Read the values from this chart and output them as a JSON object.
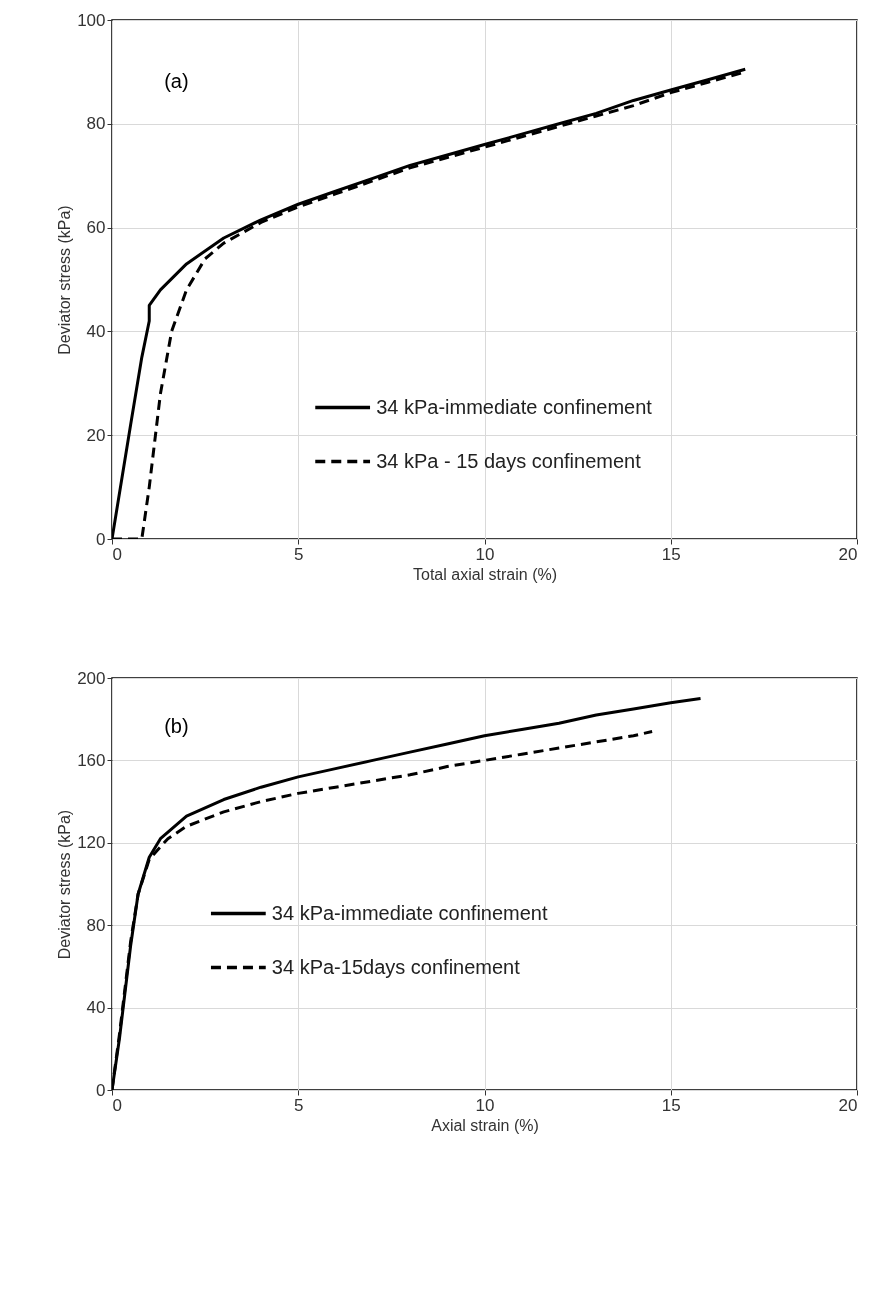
{
  "chart_data": [
    {
      "type": "line",
      "xlabel": "Total axial strain (%)",
      "ylabel": "Deviator stress (kPa)",
      "annotations": [
        "(a)"
      ],
      "xlim": [
        0,
        20
      ],
      "xticks": [
        0,
        5,
        10,
        15,
        20
      ],
      "ylim": [
        0,
        100
      ],
      "yticks": [
        0,
        20,
        40,
        60,
        80,
        100
      ],
      "grid": true,
      "legend": "bottom right",
      "series": [
        {
          "name": "34 kPa-immediate confinement",
          "color": "#000000",
          "line_style": "solid",
          "x": [
            0,
            0.5,
            0.8,
            1.0,
            1.0,
            1.3,
            2,
            3,
            4,
            5,
            6,
            7,
            8,
            9,
            10,
            11,
            12,
            13,
            14,
            15,
            16,
            17
          ],
          "values": [
            0,
            22,
            35,
            42,
            45,
            48,
            53,
            58,
            61.5,
            64.5,
            67,
            69.5,
            72,
            74,
            76,
            78,
            80,
            82,
            84.5,
            86.5,
            88.5,
            90.5
          ]
        },
        {
          "name": "34 kPa - 15 days confinement",
          "color": "#000000",
          "line_style": "dashed",
          "x": [
            0,
            0.8,
            1.0,
            1.3,
            1.6,
            2,
            2.5,
            3,
            4,
            5,
            6,
            7,
            8,
            9,
            10,
            11,
            12,
            13,
            14,
            15,
            16,
            17
          ],
          "values": [
            0,
            0,
            10,
            28,
            40,
            48,
            54,
            57,
            61,
            64,
            66.5,
            69,
            71.5,
            73.5,
            75.5,
            77.5,
            79.5,
            81.5,
            83.5,
            86,
            88,
            90
          ]
        }
      ]
    },
    {
      "type": "line",
      "xlabel": "Axial strain (%)",
      "ylabel": "Deviator stress (kPa)",
      "annotations": [
        "(b)"
      ],
      "xlim": [
        0,
        20
      ],
      "xticks": [
        0,
        5,
        10,
        15,
        20
      ],
      "ylim": [
        0,
        200
      ],
      "yticks": [
        0,
        40,
        80,
        120,
        160,
        200
      ],
      "grid": true,
      "legend": "bottom left",
      "series": [
        {
          "name": "34 kPa-immediate confinement",
          "color": "#000000",
          "line_style": "solid",
          "x": [
            0,
            0.2,
            0.5,
            0.7,
            1.0,
            1.3,
            2,
            3,
            4,
            5,
            6,
            7,
            8,
            9,
            10,
            11,
            12,
            13,
            14,
            15,
            15.8
          ],
          "values": [
            0,
            25,
            70,
            95,
            113,
            122,
            133,
            141,
            147,
            152,
            156,
            160,
            164,
            168,
            172,
            175,
            178,
            182,
            185,
            188,
            190
          ]
        },
        {
          "name": "34 kPa-15days confinement",
          "color": "#000000",
          "line_style": "dashed",
          "x": [
            0,
            0.2,
            0.5,
            0.7,
            1,
            1.5,
            2,
            3,
            4,
            5,
            6,
            7,
            8,
            9,
            10,
            11,
            12,
            13,
            14,
            14.5
          ],
          "values": [
            0,
            27,
            72,
            95,
            112,
            122,
            128,
            135,
            140,
            144,
            147,
            150,
            153,
            157,
            160,
            163,
            166,
            169,
            172,
            174
          ]
        }
      ]
    }
  ]
}
